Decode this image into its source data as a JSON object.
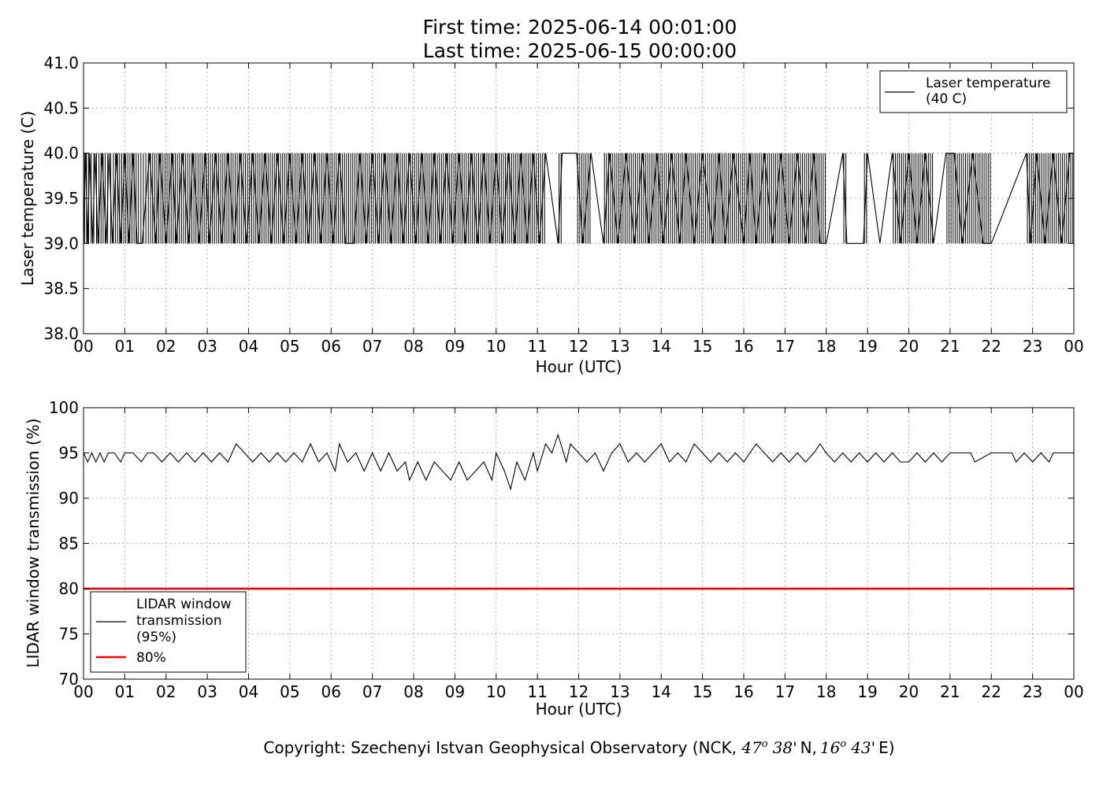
{
  "chart_data": [
    {
      "type": "line",
      "title": "First time: 2025-06-14 00:01:00",
      "subtitle": "Last time: 2025-06-15 00:00:00",
      "xlabel": "Hour (UTC)",
      "ylabel": "Laser temperature (C)",
      "xlim": [
        0,
        24
      ],
      "ylim": [
        38.0,
        41.0
      ],
      "grid": true,
      "legend_position": "top-right",
      "x_tick_labels": [
        "00",
        "01",
        "02",
        "03",
        "04",
        "05",
        "06",
        "07",
        "08",
        "09",
        "10",
        "11",
        "12",
        "13",
        "14",
        "15",
        "16",
        "17",
        "18",
        "19",
        "20",
        "21",
        "22",
        "23",
        "00"
      ],
      "y_tick_labels": [
        "38.0",
        "38.5",
        "39.0",
        "39.5",
        "40.0",
        "40.5",
        "41.0"
      ],
      "series": [
        {
          "name": "Laser temperature\n(40 C)",
          "color": "#000000",
          "levels": [
            39.0,
            40.0
          ],
          "x": [
            0.0,
            0.05,
            0.1,
            0.15,
            0.22,
            0.28,
            0.35,
            0.45,
            0.55,
            0.62,
            0.7,
            0.8,
            0.9,
            1.0,
            1.1,
            1.2,
            1.3,
            1.42,
            1.6,
            1.75,
            1.85,
            2.0,
            2.15,
            2.25,
            2.4,
            2.55,
            2.65,
            2.8,
            2.95,
            3.05,
            3.2,
            3.35,
            3.5,
            3.65,
            3.8,
            3.95,
            4.1,
            4.25,
            4.4,
            4.55,
            4.7,
            4.85,
            5.0,
            5.15,
            5.3,
            5.45,
            5.6,
            5.75,
            5.9,
            6.05,
            6.2,
            6.35,
            6.55,
            6.7,
            6.85,
            7.0,
            7.15,
            7.3,
            7.45,
            7.6,
            7.75,
            7.9,
            8.05,
            8.2,
            8.35,
            8.5,
            8.65,
            8.8,
            8.95,
            9.1,
            9.25,
            9.4,
            9.55,
            9.7,
            9.85,
            10.0,
            10.15,
            10.3,
            10.45,
            10.6,
            10.75,
            10.9,
            11.05,
            11.2,
            11.5,
            11.6,
            11.95,
            12.1,
            12.3,
            12.6,
            12.75,
            12.95,
            13.15,
            13.35,
            13.55,
            13.7,
            13.9,
            14.05,
            14.25,
            14.45,
            14.6,
            14.8,
            15.0,
            15.25,
            15.4,
            15.55,
            15.75,
            16.0,
            16.15,
            16.3,
            16.5,
            16.7,
            16.9,
            17.1,
            17.3,
            17.5,
            17.7,
            17.85,
            18.0,
            18.4,
            18.5,
            18.9,
            19.0,
            19.3,
            19.6,
            19.8,
            20.0,
            20.2,
            20.4,
            20.6,
            20.9,
            21.1,
            21.3,
            21.55,
            21.8,
            22.0,
            22.85,
            22.95,
            23.1,
            23.3,
            23.5,
            23.7,
            23.9,
            24.0
          ],
          "y": [
            39,
            40,
            39,
            40,
            39,
            40,
            39,
            40,
            39,
            40,
            39,
            40,
            39,
            40,
            39,
            40,
            39,
            39,
            40,
            39,
            40,
            39,
            40,
            39,
            40,
            39,
            40,
            39,
            40,
            39,
            40,
            39,
            40,
            39,
            40,
            39,
            40,
            39,
            40,
            39,
            40,
            39,
            40,
            39,
            40,
            39,
            40,
            39,
            40,
            39,
            40,
            39,
            39,
            40,
            39,
            40,
            39,
            40,
            39,
            40,
            39,
            40,
            39,
            40,
            39,
            40,
            39,
            40,
            39,
            40,
            39,
            40,
            39,
            40,
            39,
            40,
            39,
            40,
            39,
            40,
            39,
            40,
            39,
            40,
            39,
            40,
            40,
            39,
            40,
            39,
            40,
            39,
            40,
            39,
            40,
            39,
            40,
            39,
            40,
            39,
            40,
            39,
            40,
            39,
            40,
            39,
            40,
            39,
            40,
            39,
            40,
            39,
            40,
            39,
            40,
            39,
            40,
            39,
            39,
            40,
            39,
            39,
            40,
            39,
            40,
            39,
            40,
            39,
            40,
            39,
            40,
            40,
            39,
            40,
            39,
            39,
            40,
            39,
            40,
            39,
            40,
            39,
            40,
            40
          ]
        }
      ]
    },
    {
      "type": "line",
      "xlabel": "Hour (UTC)",
      "ylabel": "LIDAR window transmission (%)",
      "xlim": [
        0,
        24
      ],
      "ylim": [
        70,
        100
      ],
      "grid": true,
      "legend_position": "bottom-left",
      "x_tick_labels": [
        "00",
        "01",
        "02",
        "03",
        "04",
        "05",
        "06",
        "07",
        "08",
        "09",
        "10",
        "11",
        "12",
        "13",
        "14",
        "15",
        "16",
        "17",
        "18",
        "19",
        "20",
        "21",
        "22",
        "23",
        "00"
      ],
      "y_tick_labels": [
        "70",
        "75",
        "80",
        "85",
        "90",
        "95",
        "100"
      ],
      "series": [
        {
          "name": "LIDAR window\ntransmission\n(95%)",
          "color": "#000000",
          "x": [
            0.0,
            0.1,
            0.2,
            0.3,
            0.4,
            0.5,
            0.6,
            0.75,
            0.9,
            1.0,
            1.2,
            1.4,
            1.55,
            1.7,
            1.9,
            2.1,
            2.3,
            2.5,
            2.7,
            2.9,
            3.1,
            3.3,
            3.5,
            3.7,
            3.9,
            4.1,
            4.3,
            4.5,
            4.7,
            4.9,
            5.1,
            5.3,
            5.5,
            5.7,
            5.9,
            6.1,
            6.2,
            6.4,
            6.6,
            6.8,
            6.9,
            7.0,
            7.2,
            7.4,
            7.6,
            7.8,
            7.9,
            8.0,
            8.1,
            8.3,
            8.5,
            8.7,
            8.9,
            9.1,
            9.3,
            9.5,
            9.7,
            9.9,
            10.0,
            10.2,
            10.35,
            10.5,
            10.7,
            10.9,
            11.0,
            11.2,
            11.35,
            11.5,
            11.7,
            11.8,
            12.0,
            12.2,
            12.4,
            12.6,
            12.8,
            13.0,
            13.2,
            13.4,
            13.6,
            13.8,
            14.0,
            14.2,
            14.4,
            14.6,
            14.8,
            15.0,
            15.2,
            15.4,
            15.6,
            15.8,
            16.0,
            16.3,
            16.5,
            16.7,
            16.9,
            17.1,
            17.3,
            17.5,
            17.7,
            17.85,
            18.0,
            18.2,
            18.4,
            18.6,
            18.8,
            19.0,
            19.2,
            19.4,
            19.6,
            19.8,
            20.0,
            20.2,
            20.4,
            20.6,
            20.8,
            21.0,
            21.5,
            21.6,
            22.0,
            22.1,
            22.5,
            22.6,
            22.8,
            23.0,
            23.2,
            23.4,
            23.5,
            24.0
          ],
          "y": [
            95,
            94,
            95,
            94,
            95,
            94,
            95,
            95,
            94,
            95,
            95,
            94,
            95,
            95,
            94,
            95,
            94,
            95,
            94,
            95,
            94,
            95,
            94,
            96,
            95,
            94,
            95,
            94,
            95,
            94,
            95,
            94,
            96,
            94,
            95,
            93,
            96,
            94,
            95,
            93,
            94,
            95,
            93,
            95,
            93,
            94,
            92,
            93,
            94,
            92,
            94,
            93,
            92,
            94,
            92,
            93,
            94,
            92,
            95,
            93,
            91,
            94,
            92,
            95,
            93,
            96,
            95,
            97,
            94,
            96,
            95,
            94,
            95,
            93,
            95,
            96,
            94,
            95,
            94,
            95,
            96,
            94,
            95,
            94,
            96,
            95,
            94,
            95,
            94,
            95,
            94,
            96,
            95,
            94,
            95,
            94,
            95,
            94,
            95,
            96,
            95,
            94,
            95,
            94,
            95,
            94,
            95,
            94,
            95,
            94,
            94,
            95,
            94,
            95,
            94,
            95,
            95,
            94,
            95,
            95,
            95,
            94,
            95,
            94,
            95,
            94,
            95,
            95
          ]
        },
        {
          "name": "80%",
          "color": "#ff0000",
          "x": [
            0,
            24
          ],
          "y": [
            80,
            80
          ]
        }
      ]
    }
  ],
  "footer": {
    "prefix": "Copyright: Szechenyi Istvan Geophysical Observatory (NCK, ",
    "lat_deg": "47",
    "deg_sup": "o",
    "lat_min": "38'",
    "lat_hem": "N,",
    "lon_deg": "16",
    "lon_min": "43'",
    "lon_hem": "E)"
  }
}
